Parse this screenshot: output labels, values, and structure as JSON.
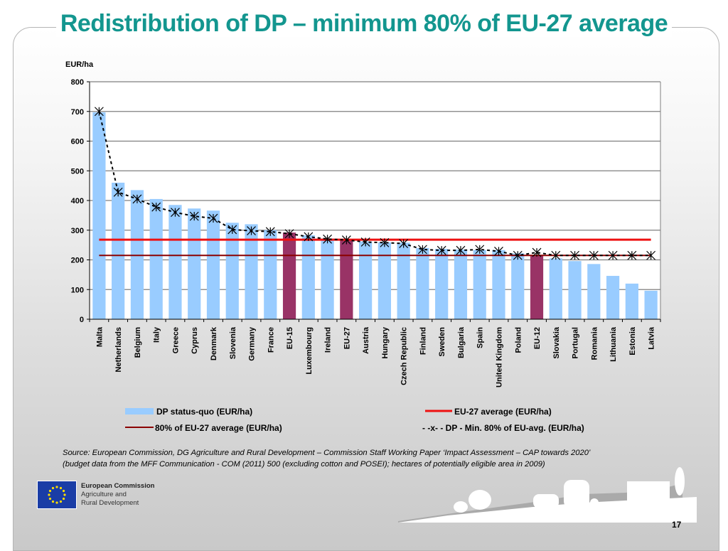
{
  "slide": {
    "title": "Redistribution of DP – minimum 80% of EU-27 average",
    "page_number": "17",
    "source_line1": "Source: European Commission, DG Agriculture and Rural Development – Commission Staff Working Paper ‘Impact Assessment – CAP towards 2020’",
    "source_line2": "(budget data from the MFF Communication - COM (2011) 500 (excluding cotton and POSEI); hectares of potentially eligible area in 2009)",
    "logo": {
      "line1": "European Commission",
      "line2": "Agriculture and",
      "line3": "Rural Development"
    }
  },
  "colors": {
    "title": "#13968f",
    "bar_country": "#99ccff",
    "bar_aggregate": "#993366",
    "eu27_avg_line": "#ee1111",
    "eu27_80pct_line": "#8b0000",
    "dp_min_line": "#000000"
  },
  "chart_data": {
    "type": "bar",
    "title": "",
    "ylabel": "EUR/ha",
    "xlabel": "",
    "ylim": [
      0,
      800
    ],
    "yticks": [
      0,
      100,
      200,
      300,
      400,
      500,
      600,
      700,
      800
    ],
    "grid": true,
    "legend_position": "bottom",
    "categories": [
      "Malta",
      "Netherlands",
      "Belgium",
      "Italy",
      "Greece",
      "Cyprus",
      "Denmark",
      "Slovenia",
      "Germany",
      "France",
      "EU-15",
      "Luxembourg",
      "Ireland",
      "EU-27",
      "Austria",
      "Hungary",
      "Czech Republic",
      "Finland",
      "Sweden",
      "Bulgaria",
      "Spain",
      "United Kingdom",
      "Poland",
      "EU-12",
      "Slovakia",
      "Portugal",
      "Romania",
      "Lithuania",
      "Estonia",
      "Latvia"
    ],
    "aggregate_categories": [
      "EU-15",
      "EU-27",
      "EU-12"
    ],
    "series": [
      {
        "name": "DP status-quo (EUR/ha)",
        "kind": "bar",
        "values": [
          697,
          460,
          435,
          405,
          385,
          373,
          366,
          325,
          320,
          300,
          292,
          283,
          272,
          268,
          262,
          259,
          258,
          240,
          237,
          235,
          233,
          233,
          222,
          213,
          205,
          196,
          186,
          146,
          120,
          96
        ]
      },
      {
        "name": "EU-27 average (EUR/ha)",
        "kind": "hline",
        "value": 268
      },
      {
        "name": "80% of EU-27 average (EUR/ha)",
        "kind": "hline",
        "value": 215
      },
      {
        "name": "DP - Min. 80% of EU-avg. (EUR/ha)",
        "kind": "line-marker",
        "values": [
          700,
          428,
          405,
          378,
          360,
          347,
          340,
          302,
          298,
          295,
          288,
          278,
          270,
          267,
          260,
          258,
          255,
          235,
          232,
          232,
          235,
          229,
          215,
          225,
          215,
          215,
          215,
          215,
          215,
          215
        ]
      }
    ],
    "legend": [
      "DP status-quo (EUR/ha)",
      "EU-27 average (EUR/ha)",
      "80% of EU-27 average (EUR/ha)",
      "- -x- - DP - Min. 80% of EU-avg. (EUR/ha)"
    ]
  }
}
